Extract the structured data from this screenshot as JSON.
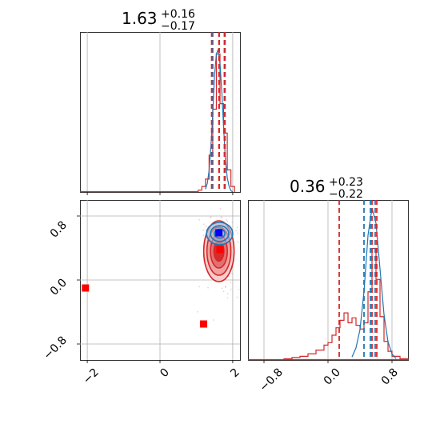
{
  "chart_data": {
    "type": "corner",
    "parameters": [
      {
        "title": {
          "value": "1.63",
          "plus": "+0.16",
          "minus": "−0.17"
        },
        "range": [
          -2.2,
          2.2
        ],
        "ticks": [
          -2,
          0,
          2
        ],
        "tick_labels": [
          "−2",
          "0",
          "2"
        ]
      },
      {
        "title": {
          "value": "0.36",
          "plus": "+0.23",
          "minus": "−0.22"
        },
        "range": [
          -1.0,
          1.0
        ],
        "ticks": [
          -0.8,
          0.0,
          0.8
        ],
        "tick_labels": [
          "−0.8",
          "0.0",
          "0.8"
        ]
      }
    ],
    "series": [
      {
        "color": "#1f77b4",
        "quantiles_param1": [
          1.45,
          1.63,
          1.79
        ],
        "quantiles_param2": [
          0.45,
          0.53,
          0.59
        ]
      },
      {
        "color": "#d62728",
        "quantiles_param1": [
          1.42,
          1.62,
          1.77
        ],
        "quantiles_param2": [
          0.14,
          0.55,
          0.61
        ]
      }
    ],
    "hist1_blue": {
      "x": [
        1.25,
        1.3,
        1.35,
        1.4,
        1.45,
        1.5,
        1.55,
        1.6,
        1.65,
        1.7,
        1.75,
        1.8,
        1.85,
        1.9,
        1.95,
        2.0
      ],
      "y": [
        0.02,
        0.06,
        0.15,
        0.32,
        0.55,
        0.82,
        0.97,
        1.0,
        0.9,
        0.7,
        0.45,
        0.22,
        0.1,
        0.04,
        0.01,
        0
      ]
    },
    "hist1_red_steps": {
      "edges": [
        1.05,
        1.15,
        1.25,
        1.35,
        1.45,
        1.55,
        1.65,
        1.75,
        1.85,
        1.95,
        2.05
      ],
      "counts": [
        0.01,
        0.03,
        0.07,
        0.2,
        0.45,
        0.75,
        0.48,
        0.32,
        0.12,
        0.03
      ]
    },
    "hist2_blue": {
      "x": [
        0.3,
        0.35,
        0.4,
        0.45,
        0.5,
        0.55,
        0.6,
        0.65,
        0.7,
        0.75,
        0.8,
        0.85
      ],
      "y": [
        0.02,
        0.08,
        0.2,
        0.45,
        0.82,
        1.0,
        0.9,
        0.6,
        0.3,
        0.12,
        0.04,
        0.01
      ]
    },
    "hist2_red_steps": {
      "edges": [
        -0.55,
        -0.45,
        -0.35,
        -0.25,
        -0.15,
        -0.05,
        0.0,
        0.05,
        0.1,
        0.15,
        0.2,
        0.25,
        0.3,
        0.35,
        0.4,
        0.45,
        0.5,
        0.55,
        0.6,
        0.65,
        0.7,
        0.75,
        0.8,
        0.9,
        1.0
      ],
      "counts": [
        0.01,
        0.02,
        0.03,
        0.05,
        0.08,
        0.12,
        0.14,
        0.2,
        0.26,
        0.32,
        0.38,
        0.3,
        0.34,
        0.28,
        0.25,
        0.3,
        0.55,
        0.9,
        0.65,
        0.35,
        0.15,
        0.07,
        0.03,
        0.01
      ]
    },
    "kde2d": {
      "center": [
        1.62,
        0.36
      ],
      "blue_center": [
        1.64,
        0.58
      ],
      "blue_sigma": [
        0.18,
        0.07
      ],
      "red_sigma": [
        0.22,
        0.2
      ]
    },
    "truth_points_red": [
      [
        -2.05,
        -0.1
      ],
      [
        1.2,
        -0.55
      ],
      [
        1.65,
        0.38
      ]
    ],
    "truth_point_blue": [
      1.62,
      0.59
    ],
    "grid": true,
    "colors": {
      "blue": "#1f77b4",
      "red": "#d62728",
      "truth_blue": "#0000ff",
      "truth_red": "#ff0000"
    }
  }
}
